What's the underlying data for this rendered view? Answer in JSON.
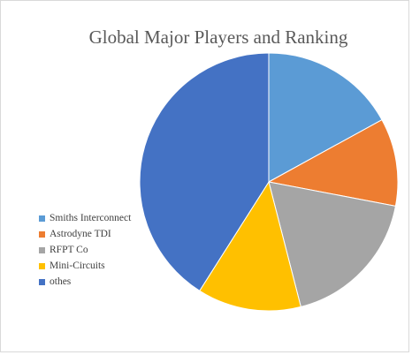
{
  "chart_data": {
    "type": "pie",
    "title": "Global Major Players and Ranking",
    "categories": [
      "Smiths Interconnect",
      "Astrodyne TDI",
      "RFPT Co",
      "Mini-Circuits",
      "othes"
    ],
    "values": [
      17,
      11,
      18,
      13,
      41
    ],
    "colors": [
      "#5b9bd5",
      "#ed7d31",
      "#a5a5a5",
      "#ffc000",
      "#4472c4"
    ],
    "start_angle_deg": 0,
    "direction": "clockwise",
    "legend_position": "left"
  }
}
